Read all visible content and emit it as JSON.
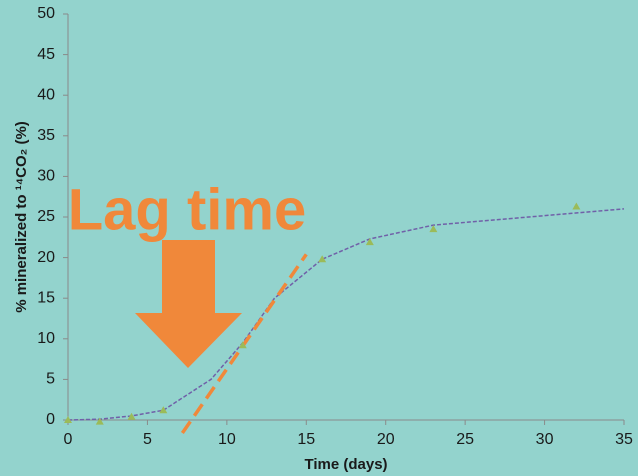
{
  "chart_data": {
    "type": "scatter",
    "xlabel": "Time (days)",
    "ylabel": "% mineralized to ¹⁴CO₂ (%)",
    "annotation": "Lag time",
    "x": [
      0,
      2,
      4,
      6,
      11,
      16,
      19,
      23,
      32
    ],
    "series": [
      {
        "color": "#9bbb59",
        "marker": "triangle",
        "values": [
          0,
          -0.2,
          0.4,
          1.2,
          9.2,
          19.8,
          21.9,
          23.5,
          26.3
        ]
      }
    ],
    "fit": {
      "color": "#7060a8",
      "x": [
        0,
        2,
        4,
        6,
        9,
        11,
        13,
        16,
        19,
        23,
        35
      ],
      "y": [
        0,
        0.1,
        0.5,
        1.2,
        5,
        9.5,
        15,
        19.8,
        22.3,
        24,
        26
      ]
    },
    "tangent": {
      "color": "#f0883a",
      "x": [
        7.2,
        15
      ],
      "y": [
        -1.6,
        20.4
      ]
    },
    "xlim": [
      0,
      35
    ],
    "xticks": [
      0,
      5,
      10,
      15,
      20,
      25,
      30,
      35
    ],
    "ylim": [
      0,
      50
    ],
    "yticks": [
      0,
      5,
      10,
      15,
      20,
      25,
      30,
      35,
      40,
      45,
      50
    ]
  }
}
